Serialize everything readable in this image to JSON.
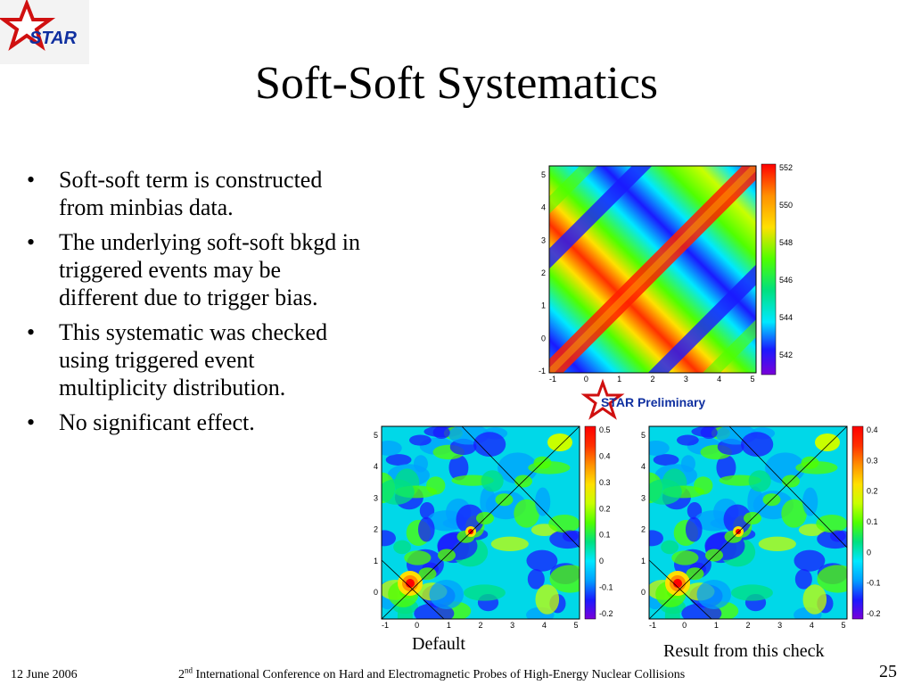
{
  "slide": {
    "title": "Soft-Soft Systematics",
    "logo_text": "STAR",
    "bullets": [
      "Soft-soft term is constructed from minbias data.",
      "The underlying soft-soft bkgd in triggered events may be different due to trigger bias.",
      "This systematic was checked using triggered event multiplicity distribution.",
      "No significant effect."
    ],
    "bullet_char": "•",
    "preliminary_label": "STAR Preliminary",
    "caption_left": "Default",
    "caption_right": "Result from this check",
    "footer": {
      "date": "12 June 2006",
      "conference_num": "2",
      "conference_sup": "nd",
      "conference_rest": " International Conference on Hard and Electromagnetic Probes of High-Energy Nuclear Collisions",
      "page": "25"
    }
  },
  "plots": {
    "top": {
      "x_ticks": [
        "-1",
        "0",
        "1",
        "2",
        "3",
        "4",
        "5"
      ],
      "y_ticks": [
        "-1",
        "0",
        "1",
        "2",
        "3",
        "4",
        "5"
      ],
      "z_ticks": [
        "552",
        "550",
        "548",
        "546",
        "544",
        "542"
      ]
    },
    "left": {
      "x_ticks": [
        "-1",
        "0",
        "1",
        "2",
        "3",
        "4",
        "5"
      ],
      "y_ticks": [
        "0",
        "1",
        "2",
        "3",
        "4",
        "5"
      ],
      "z_ticks": [
        "0.5",
        "0.4",
        "0.3",
        "0.2",
        "0.1",
        "0",
        "-0.1",
        "-0.2"
      ]
    },
    "right": {
      "x_ticks": [
        "-1",
        "0",
        "1",
        "2",
        "3",
        "4",
        "5"
      ],
      "y_ticks": [
        "0",
        "1",
        "2",
        "3",
        "4",
        "5"
      ],
      "z_ticks": [
        "0.4",
        "0.3",
        "0.2",
        "0.1",
        "0",
        "-0.1",
        "-0.2"
      ]
    }
  },
  "colors": {
    "palette": [
      "#7a00d8",
      "#1a1aff",
      "#00a0ff",
      "#00e8ff",
      "#00e080",
      "#50ff00",
      "#c8ff00",
      "#ffe000",
      "#ff9000",
      "#ff3000",
      "#ff0000"
    ],
    "logo_star": "#d01010",
    "logo_text": "#1030a0"
  }
}
